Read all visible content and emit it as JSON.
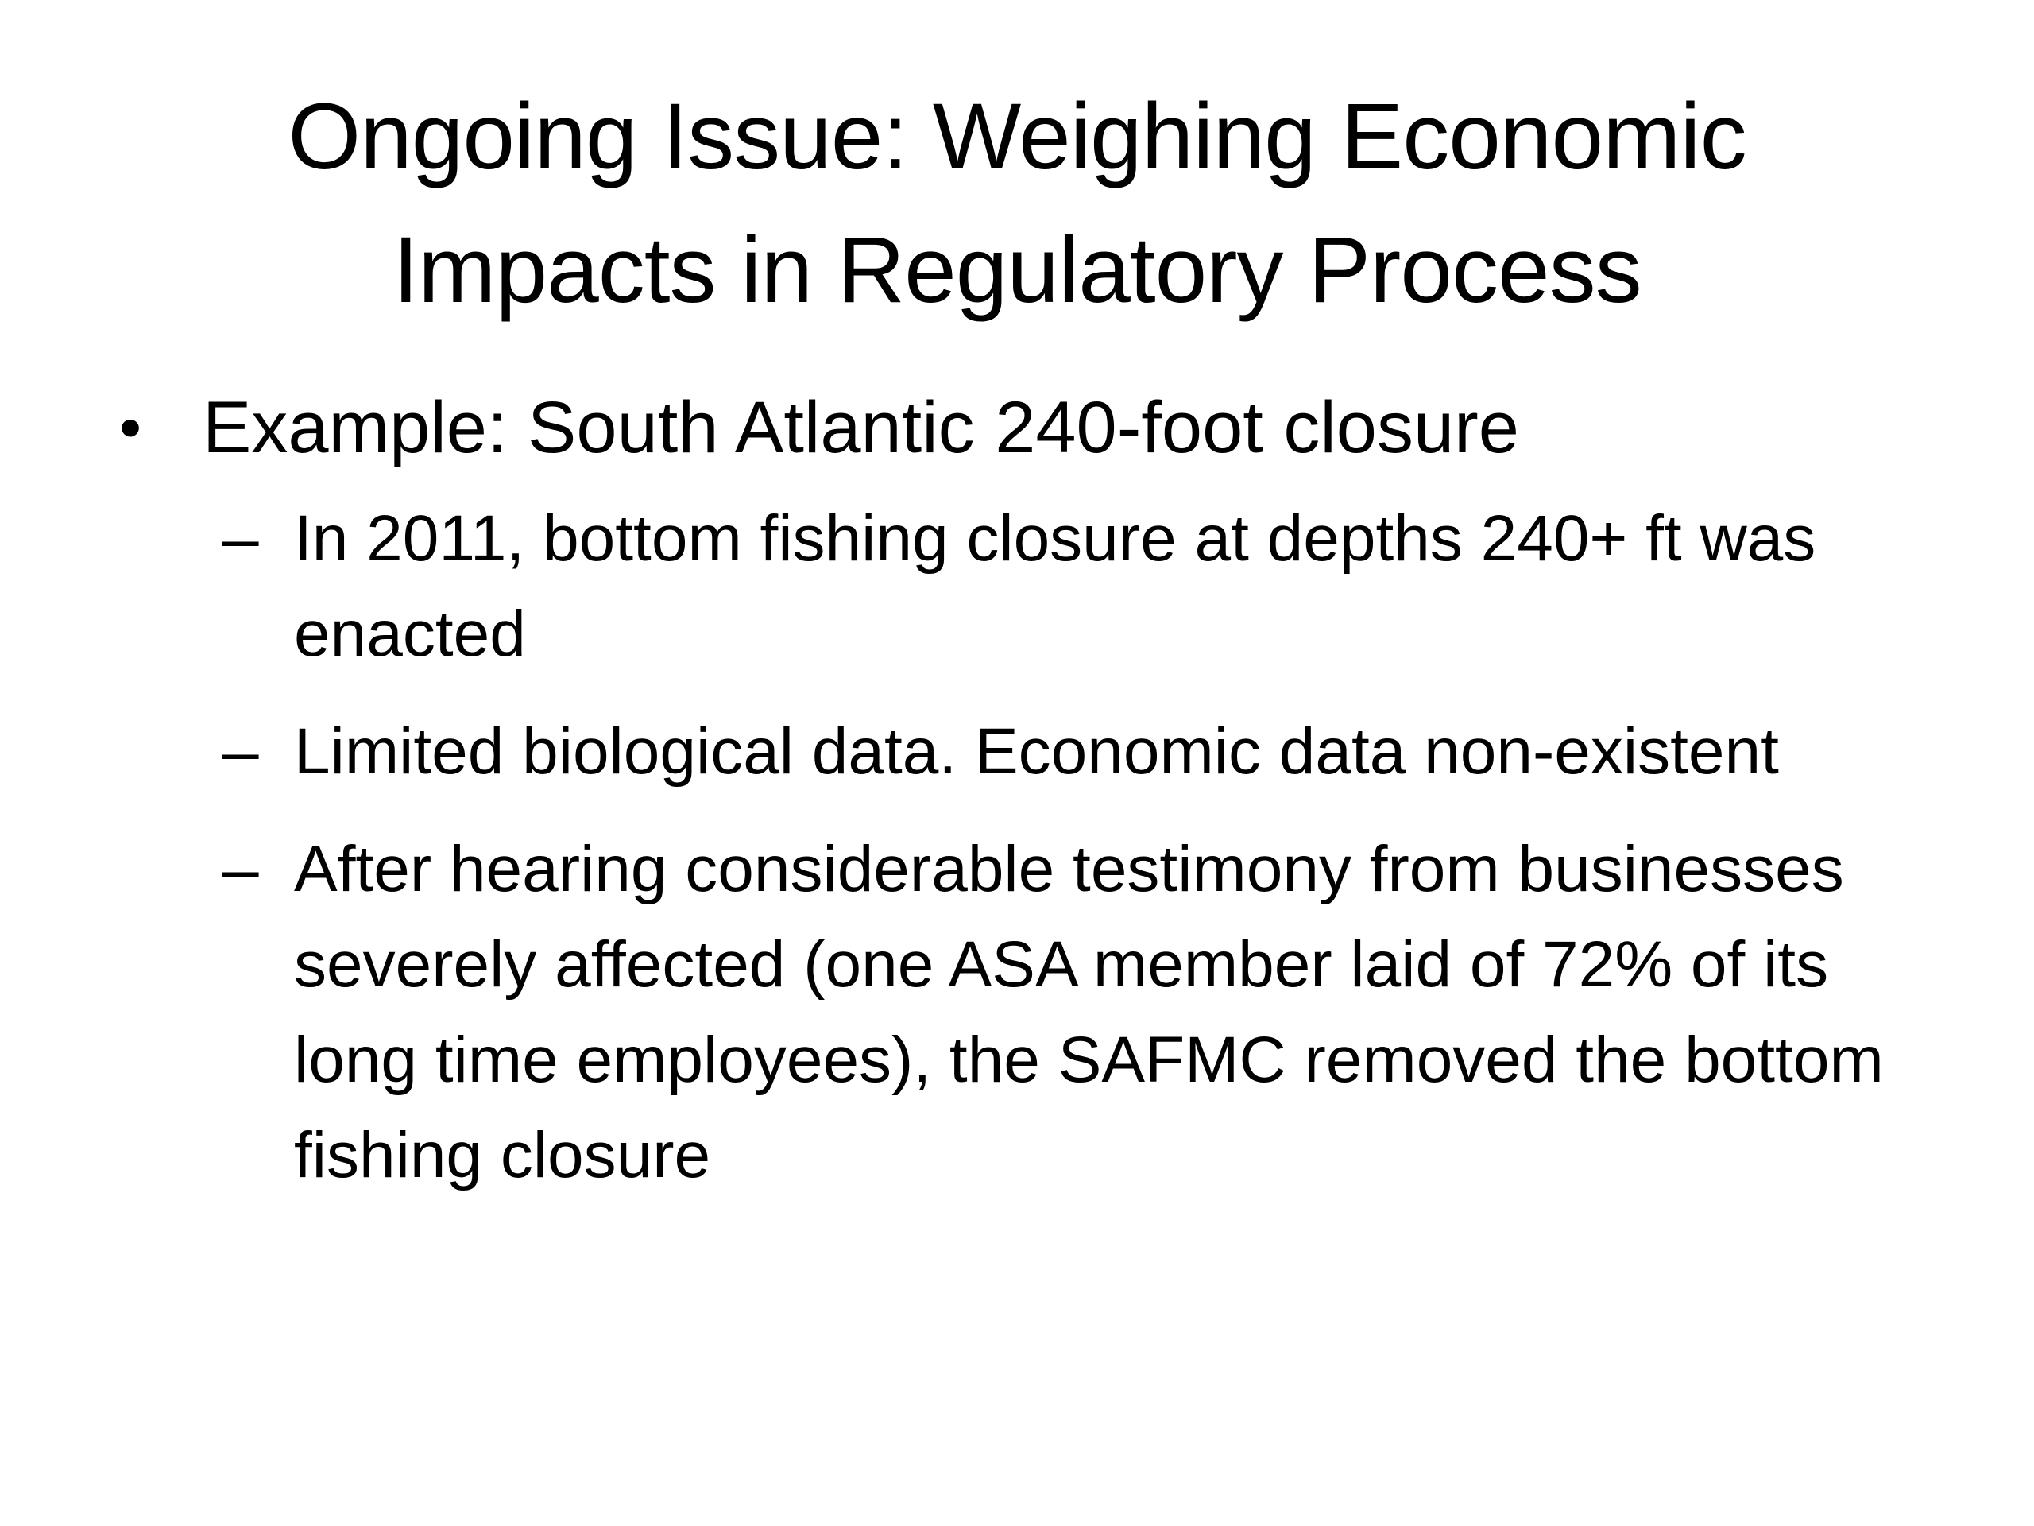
{
  "slide": {
    "title": "Ongoing Issue: Weighing Economic Impacts in Regulatory Process",
    "bullet": {
      "marker": "•",
      "text": "Example: South Atlantic 240-foot closure"
    },
    "subitems": [
      {
        "marker": "–",
        "text": "In 2011, bottom fishing closure at depths 240+ ft was enacted"
      },
      {
        "marker": "–",
        "text": "Limited biological data. Economic data non-existent"
      },
      {
        "marker": "–",
        "text": "After hearing considerable testimony from businesses severely affected (one ASA member laid of 72% of its long time employees), the SAFMC removed the bottom fishing closure"
      }
    ]
  }
}
